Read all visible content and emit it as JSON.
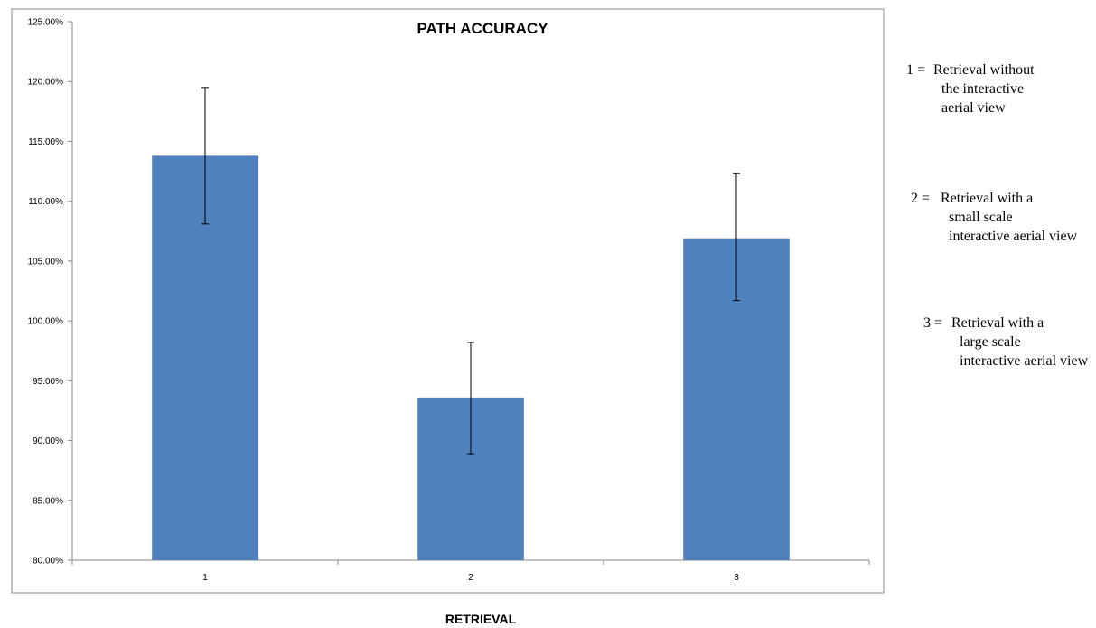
{
  "chart_data": {
    "type": "bar",
    "title": "PATH ACCURACY",
    "xlabel": "RETRIEVAL",
    "ylabel": "",
    "categories": [
      "1",
      "2",
      "3"
    ],
    "values": [
      113.8,
      93.6,
      106.9
    ],
    "error_bars": [
      {
        "low": 108.1,
        "high": 119.5
      },
      {
        "low": 88.9,
        "high": 98.2
      },
      {
        "low": 101.7,
        "high": 112.3
      }
    ],
    "ylim": [
      80,
      125
    ],
    "yticks": [
      80,
      85,
      90,
      95,
      100,
      105,
      110,
      115,
      120,
      125
    ],
    "ytick_labels": [
      "80.00%",
      "85.00%",
      "90.00%",
      "95.00%",
      "100.00%",
      "105.00%",
      "110.00%",
      "115.00%",
      "120.00%",
      "125.00%"
    ],
    "bar_color": "#4f81bd",
    "grid": false,
    "legend_position": "right",
    "annotations": [
      {
        "key": "1 =",
        "lines": [
          "Retrieval without",
          "the interactive",
          "aerial view"
        ]
      },
      {
        "key": "2 =",
        "lines": [
          "Retrieval with a",
          "small scale",
          "interactive aerial view"
        ]
      },
      {
        "key": "3 =",
        "lines": [
          "Retrieval with a",
          "large scale",
          "interactive aerial view"
        ]
      }
    ]
  }
}
